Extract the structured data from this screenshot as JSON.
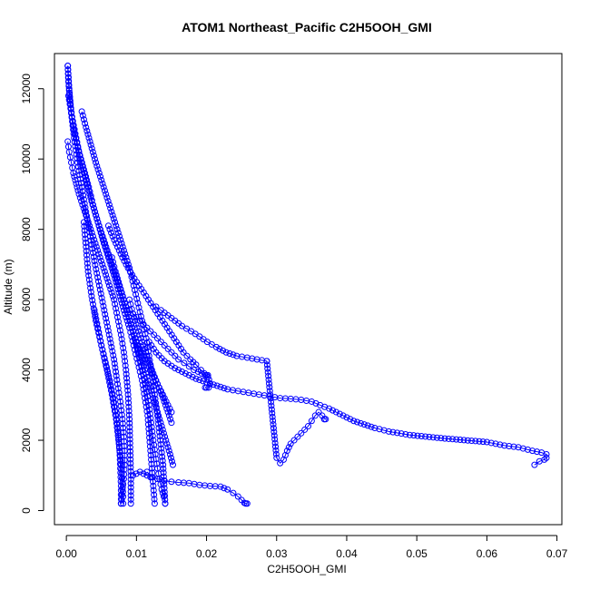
{
  "chart_data": {
    "type": "scatter",
    "title": "ATOM1 Northeast_Pacific C2H5OOH_GMI",
    "xlabel": "C2H5OOH_GMI",
    "ylabel": "Altitude (m)",
    "xlim": [
      -0.0017,
      0.0707
    ],
    "ylim": [
      -400,
      13000
    ],
    "xticks": [
      0.0,
      0.01,
      0.02,
      0.03,
      0.04,
      0.05,
      0.06,
      0.07
    ],
    "xtick_labels": [
      "0.00",
      "0.01",
      "0.02",
      "0.03",
      "0.04",
      "0.05",
      "0.06",
      "0.07"
    ],
    "yticks": [
      0,
      2000,
      4000,
      6000,
      8000,
      10000,
      12000
    ],
    "ytick_labels": [
      "0",
      "2000",
      "4000",
      "6000",
      "8000",
      "10000",
      "12000"
    ],
    "marker": "open-circle",
    "lines_connecting": true,
    "color": "#0000ff",
    "legend": "none",
    "grid": false,
    "series": [
      {
        "x": [
          0.0002,
          0.0003,
          0.0005,
          0.0008,
          0.0012,
          0.0018,
          0.0025,
          0.0032,
          0.0038,
          0.0045,
          0.0052,
          0.006,
          0.0068,
          0.0075,
          0.0082,
          0.009,
          0.0096,
          0.0102,
          0.0108,
          0.0112,
          0.0116,
          0.0118,
          0.012,
          0.0122,
          0.0124,
          0.0126
        ],
        "y": [
          12650,
          12200,
          11700,
          11200,
          10700,
          10200,
          9700,
          9200,
          8700,
          8200,
          7700,
          7200,
          6700,
          6200,
          5700,
          5200,
          4700,
          4200,
          3700,
          3200,
          2700,
          2200,
          1700,
          1200,
          700,
          200
        ]
      },
      {
        "x": [
          0.0002,
          0.0004,
          0.0007,
          0.0011,
          0.0016,
          0.0022,
          0.0028,
          0.0034,
          0.004,
          0.0047,
          0.0054,
          0.0061,
          0.0068,
          0.0073,
          0.0077,
          0.008,
          0.0082,
          0.0083,
          0.0083,
          0.0082,
          0.008,
          0.0079,
          0.0078
        ],
        "y": [
          12650,
          12000,
          11300,
          10600,
          9900,
          9200,
          8500,
          7800,
          7100,
          6400,
          5700,
          5000,
          4300,
          3600,
          3100,
          2600,
          2100,
          1700,
          1300,
          900,
          600,
          300,
          200
        ]
      },
      {
        "x": [
          0.0003,
          0.0008,
          0.0014,
          0.002,
          0.0028,
          0.0036,
          0.0045,
          0.0055,
          0.0065,
          0.0075,
          0.0085,
          0.0094,
          0.0102,
          0.0109,
          0.0114,
          0.0118,
          0.0121,
          0.0124,
          0.0127,
          0.013,
          0.0133,
          0.0136,
          0.0139,
          0.0141
        ],
        "y": [
          11800,
          11200,
          10600,
          10000,
          9400,
          8800,
          8200,
          7600,
          7000,
          6400,
          5800,
          5200,
          4600,
          4000,
          3500,
          3000,
          2500,
          2000,
          1600,
          1200,
          900,
          600,
          400,
          200
        ]
      },
      {
        "x": [
          0.0022,
          0.0028,
          0.0035,
          0.0042,
          0.005,
          0.0058,
          0.0066,
          0.0074,
          0.0082,
          0.009,
          0.0096,
          0.0102,
          0.0108,
          0.0114,
          0.0118,
          0.0122,
          0.0126,
          0.013,
          0.0134,
          0.0138,
          0.0141
        ],
        "y": [
          11350,
          10900,
          10400,
          9900,
          9400,
          8900,
          8400,
          7900,
          7400,
          6900,
          6400,
          5900,
          5400,
          4900,
          4400,
          3900,
          3300,
          2700,
          2000,
          1300,
          200
        ]
      },
      {
        "x": [
          0.0002,
          0.0004,
          0.0007,
          0.001,
          0.0014,
          0.0018,
          0.0023,
          0.0028,
          0.0033,
          0.0038,
          0.0043,
          0.0048,
          0.0053,
          0.0058,
          0.0063,
          0.0068,
          0.0073,
          0.0078,
          0.0082,
          0.0085,
          0.0088,
          0.009,
          0.0091,
          0.0092,
          0.0092
        ],
        "y": [
          10500,
          10200,
          9900,
          9600,
          9300,
          9000,
          8700,
          8400,
          8100,
          7800,
          7500,
          7200,
          6900,
          6600,
          6300,
          6000,
          5500,
          5000,
          4500,
          4000,
          3300,
          2600,
          1800,
          1000,
          200
        ]
      },
      {
        "x": [
          0.0025,
          0.0028,
          0.0031,
          0.0036,
          0.0042,
          0.005,
          0.0058,
          0.0065,
          0.0071,
          0.0075,
          0.0078,
          0.008,
          0.0081,
          0.0081
        ],
        "y": [
          8200,
          7500,
          6800,
          6100,
          5400,
          4700,
          4000,
          3300,
          2600,
          1900,
          1300,
          800,
          400,
          200
        ]
      },
      {
        "x": [
          0.004,
          0.0045,
          0.005,
          0.0056,
          0.0062,
          0.0067,
          0.0071,
          0.0074,
          0.0076,
          0.0077,
          0.0078,
          0.0078
        ],
        "y": [
          5700,
          5200,
          4700,
          4200,
          3700,
          3200,
          2700,
          2200,
          1700,
          1200,
          700,
          200
        ]
      },
      {
        "x": [
          0.0065,
          0.007,
          0.0076,
          0.0082,
          0.0088,
          0.0094,
          0.01,
          0.0106,
          0.0112,
          0.0118,
          0.0124,
          0.013,
          0.0136,
          0.0142,
          0.0148,
          0.0152
        ],
        "y": [
          7200,
          6800,
          6400,
          6000,
          5600,
          5200,
          4800,
          4400,
          4000,
          3600,
          3200,
          2800,
          2400,
          2000,
          1600,
          1300
        ]
      },
      {
        "x": [
          0.009,
          0.0095,
          0.0101,
          0.0108,
          0.0115,
          0.0122,
          0.013,
          0.0138,
          0.0145,
          0.015
        ],
        "y": [
          6000,
          5600,
          5200,
          4800,
          4400,
          4000,
          3600,
          3200,
          2800,
          2500
        ]
      },
      {
        "x": [
          0.01,
          0.0105,
          0.011,
          0.0115,
          0.012,
          0.0125,
          0.013,
          0.0135,
          0.014,
          0.0145,
          0.015
        ],
        "y": [
          4800,
          4600,
          4400,
          4200,
          4000,
          3800,
          3600,
          3400,
          3200,
          3000,
          2800
        ]
      },
      {
        "x": [
          0.006,
          0.0066,
          0.0073,
          0.008,
          0.0088,
          0.0097,
          0.0107,
          0.0117,
          0.0127,
          0.0137,
          0.0147,
          0.0157,
          0.0167,
          0.0177,
          0.0185,
          0.0192,
          0.0197,
          0.02,
          0.0202,
          0.0205,
          0.0203,
          0.02,
          0.0198
        ],
        "y": [
          8100,
          7800,
          7500,
          7200,
          6900,
          6600,
          6300,
          6000,
          5700,
          5400,
          5100,
          4800,
          4500,
          4300,
          4150,
          4000,
          3900,
          3850,
          3850,
          3600,
          3500,
          3500,
          3500
        ]
      },
      {
        "x": [
          0.0085,
          0.009,
          0.0095,
          0.01,
          0.0105,
          0.011,
          0.0115,
          0.012,
          0.0125,
          0.013,
          0.0135,
          0.014,
          0.0145,
          0.015,
          0.0155,
          0.016,
          0.0168,
          0.0175,
          0.0182,
          0.0188,
          0.0193,
          0.0198,
          0.0202
        ],
        "y": [
          5800,
          5700,
          5600,
          5500,
          5400,
          5300,
          5200,
          5100,
          5000,
          4900,
          4800,
          4700,
          4600,
          4500,
          4400,
          4300,
          4200,
          4100,
          4000,
          3950,
          3900,
          3850,
          3800
        ]
      },
      {
        "x": [
          0.0128,
          0.0135,
          0.0145,
          0.0155,
          0.0165,
          0.0178,
          0.019,
          0.0201,
          0.0214,
          0.0228,
          0.0243,
          0.0258,
          0.0272,
          0.0286
        ],
        "y": [
          5800,
          5700,
          5550,
          5400,
          5250,
          5100,
          4950,
          4800,
          4650,
          4500,
          4400,
          4350,
          4300,
          4250
        ]
      },
      {
        "x": [
          0.0286,
          0.03,
          0.0305,
          0.031,
          0.0315,
          0.032,
          0.0325,
          0.033,
          0.0335,
          0.034,
          0.0345,
          0.035,
          0.0355,
          0.036,
          0.0365,
          0.037,
          0.0368,
          0.0368
        ],
        "y": [
          4250,
          1500,
          1350,
          1450,
          1700,
          1900,
          2000,
          2100,
          2200,
          2300,
          2400,
          2550,
          2700,
          2800,
          2700,
          2600,
          2600,
          2600
        ]
      },
      {
        "x": [
          0.0118,
          0.0128,
          0.014,
          0.0155,
          0.017,
          0.0185,
          0.02,
          0.0215,
          0.023,
          0.0245,
          0.026,
          0.0275,
          0.029,
          0.0305,
          0.032,
          0.0335,
          0.035,
          0.0362,
          0.0375,
          0.0385,
          0.0395,
          0.041,
          0.0425,
          0.044,
          0.046,
          0.049,
          0.054,
          0.06,
          0.0625,
          0.0645,
          0.0665,
          0.0678,
          0.0685,
          0.0685,
          0.0682,
          0.0675,
          0.0668
        ],
        "y": [
          4800,
          4500,
          4250,
          4050,
          3900,
          3750,
          3650,
          3550,
          3450,
          3400,
          3350,
          3300,
          3250,
          3200,
          3180,
          3150,
          3100,
          3000,
          2900,
          2800,
          2700,
          2550,
          2450,
          2350,
          2250,
          2150,
          2050,
          1950,
          1850,
          1800,
          1700,
          1650,
          1600,
          1500,
          1450,
          1400,
          1300
        ]
      },
      {
        "x": [
          0.0115,
          0.0122,
          0.013,
          0.014,
          0.015,
          0.016,
          0.0175,
          0.019,
          0.0205,
          0.022,
          0.023,
          0.0238,
          0.0245,
          0.025,
          0.0254,
          0.0256,
          0.0258
        ],
        "y": [
          1100,
          950,
          900,
          850,
          820,
          800,
          780,
          730,
          700,
          680,
          600,
          500,
          400,
          300,
          220,
          200,
          200
        ]
      },
      {
        "x": [
          0.0095,
          0.01,
          0.0105,
          0.011,
          0.0115,
          0.012
        ],
        "y": [
          1000,
          1050,
          1100,
          1050,
          1000,
          950
        ]
      }
    ]
  }
}
